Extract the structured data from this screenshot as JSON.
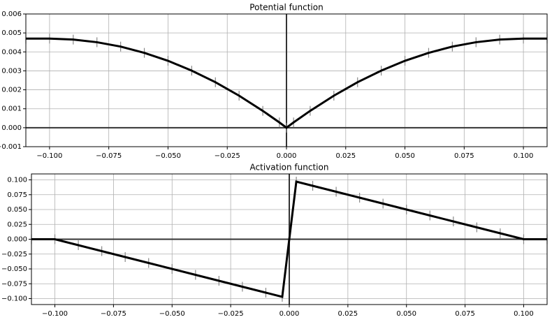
{
  "chart_data": [
    {
      "type": "line",
      "title": "Potential function",
      "x": [
        -0.11,
        -0.1,
        -0.09,
        -0.08,
        -0.07,
        -0.06,
        -0.05,
        -0.04,
        -0.03,
        -0.02,
        -0.01,
        -0.003,
        0,
        0.003,
        0.01,
        0.02,
        0.03,
        0.04,
        0.05,
        0.06,
        0.07,
        0.08,
        0.09,
        0.1,
        0.11
      ],
      "series": [
        {
          "color": "#000000",
          "marker": "|",
          "marker_color": "#888888",
          "values": [
            0.0047,
            0.0047,
            0.00465,
            0.00451,
            0.00428,
            0.00395,
            0.00353,
            0.00301,
            0.0024,
            0.00169,
            0.00089,
            0.00028,
            0,
            0.00028,
            0.00089,
            0.00169,
            0.0024,
            0.00301,
            0.00353,
            0.00395,
            0.00428,
            0.00451,
            0.00465,
            0.0047,
            0.0047
          ]
        }
      ],
      "xlim": [
        -0.11,
        0.11
      ],
      "xticks": [
        {
          "value": -0.1,
          "label": "−0.100"
        },
        {
          "value": -0.075,
          "label": "−0.075"
        },
        {
          "value": -0.05,
          "label": "−0.050"
        },
        {
          "value": -0.025,
          "label": "−0.025"
        },
        {
          "value": 0,
          "label": "0.000"
        },
        {
          "value": 0.025,
          "label": "0.025"
        },
        {
          "value": 0.05,
          "label": "0.050"
        },
        {
          "value": 0.075,
          "label": "0.075"
        },
        {
          "value": 0.1,
          "label": "0.100"
        }
      ],
      "ylim": [
        -0.001,
        0.006
      ],
      "yticks": [
        {
          "value": -0.001,
          "label": "−0.001"
        },
        {
          "value": 0,
          "label": "0.000"
        },
        {
          "value": 0.001,
          "label": "0.001"
        },
        {
          "value": 0.002,
          "label": "0.002"
        },
        {
          "value": 0.003,
          "label": "0.003"
        },
        {
          "value": 0.004,
          "label": "0.004"
        },
        {
          "value": 0.005,
          "label": "0.005"
        },
        {
          "value": 0.006,
          "label": "0.006"
        }
      ],
      "grid": true
    },
    {
      "type": "line",
      "title": "Activation function",
      "x": [
        -0.11,
        -0.1,
        -0.09,
        -0.08,
        -0.07,
        -0.06,
        -0.05,
        -0.04,
        -0.03,
        -0.02,
        -0.01,
        -0.003,
        0,
        0.003,
        0.01,
        0.02,
        0.03,
        0.04,
        0.05,
        0.06,
        0.07,
        0.08,
        0.09,
        0.1,
        0.11
      ],
      "series": [
        {
          "color": "#000000",
          "marker": "|",
          "marker_color": "#888888",
          "values": [
            0,
            0,
            -0.01,
            -0.02,
            -0.03,
            -0.04,
            -0.05,
            -0.06,
            -0.07,
            -0.08,
            -0.09,
            -0.097,
            0,
            0.097,
            0.09,
            0.08,
            0.07,
            0.06,
            0.05,
            0.04,
            0.03,
            0.02,
            0.01,
            0,
            0
          ]
        }
      ],
      "xlim": [
        -0.11,
        0.11
      ],
      "xticks": [
        {
          "value": -0.1,
          "label": "−0.100"
        },
        {
          "value": -0.075,
          "label": "−0.075"
        },
        {
          "value": -0.05,
          "label": "−0.050"
        },
        {
          "value": -0.025,
          "label": "−0.025"
        },
        {
          "value": 0,
          "label": "0.000"
        },
        {
          "value": 0.025,
          "label": "0.025"
        },
        {
          "value": 0.05,
          "label": "0.050"
        },
        {
          "value": 0.075,
          "label": "0.075"
        },
        {
          "value": 0.1,
          "label": "0.100"
        }
      ],
      "ylim": [
        -0.11,
        0.11
      ],
      "yticks": [
        {
          "value": -0.1,
          "label": "−0.100"
        },
        {
          "value": -0.075,
          "label": "−0.075"
        },
        {
          "value": -0.05,
          "label": "−0.050"
        },
        {
          "value": -0.025,
          "label": "−0.025"
        },
        {
          "value": 0,
          "label": "0.000"
        },
        {
          "value": 0.025,
          "label": "0.025"
        },
        {
          "value": 0.05,
          "label": "0.050"
        },
        {
          "value": 0.075,
          "label": "0.075"
        },
        {
          "value": 0.1,
          "label": "0.100"
        }
      ],
      "grid": true
    }
  ]
}
